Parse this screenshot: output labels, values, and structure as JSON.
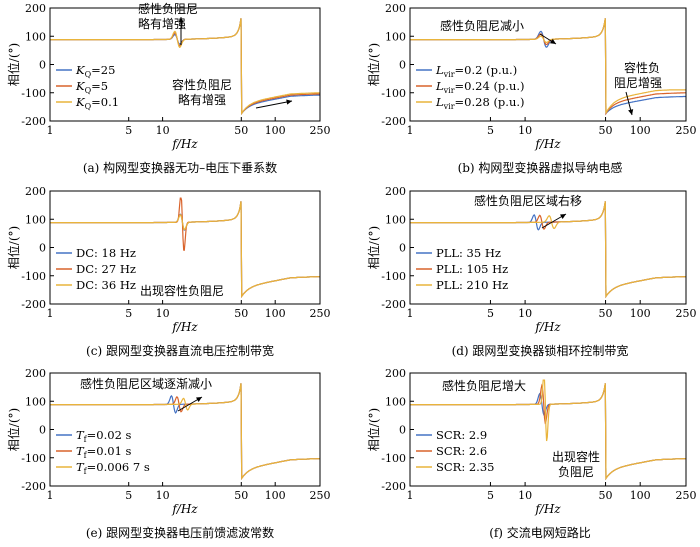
{
  "colors": {
    "blue": "#4472C4",
    "orange": "#D9632B",
    "yellow": "#E9B43B"
  },
  "chart_data": [
    {
      "type": "line",
      "caption": "(a) 构网型变换器无功–电压下垂系数",
      "ylabel": "相位/(°)",
      "xlabel": "f/Hz",
      "xscale": "log",
      "xlim": [
        1,
        250
      ],
      "ylim": [
        -200,
        200
      ],
      "xticks": [
        "1",
        "5",
        "10",
        "50",
        "100",
        "250"
      ],
      "yticks": [
        "200",
        "100",
        "0",
        "-100",
        "-200"
      ],
      "legend_position": "center-left",
      "series": [
        {
          "label_main": "K",
          "label_sub": "Q",
          "label_rest": "=25",
          "color": "blue"
        },
        {
          "label_main": "K",
          "label_sub": "Q",
          "label_rest": "=5",
          "color": "orange"
        },
        {
          "label_main": "K",
          "label_sub": "Q",
          "label_rest": "=0.1",
          "color": "yellow"
        }
      ],
      "annotations": [
        "感性负阻尼",
        "略有增强",
        "容性负阻尼",
        "略有增强"
      ]
    },
    {
      "type": "line",
      "caption": "(b) 构网型变换器虚拟导纳电感",
      "ylabel": "相位/(°)",
      "xlabel": "f/Hz",
      "xscale": "log",
      "xlim": [
        1,
        250
      ],
      "ylim": [
        -200,
        200
      ],
      "xticks": [
        "1",
        "5",
        "10",
        "50",
        "100",
        "250"
      ],
      "yticks": [
        "200",
        "100",
        "0",
        "-100",
        "-200"
      ],
      "legend_position": "center-left",
      "series": [
        {
          "label_main": "L",
          "label_sub": "vir",
          "label_rest": "=0.2 (p.u.)",
          "color": "blue"
        },
        {
          "label_main": "L",
          "label_sub": "vir",
          "label_rest": "=0.24 (p.u.)",
          "color": "orange"
        },
        {
          "label_main": "L",
          "label_sub": "vir",
          "label_rest": "=0.28 (p.u.)",
          "color": "yellow"
        }
      ],
      "annotations": [
        "感性负阻尼减小",
        "容性负",
        "阻尼增强"
      ]
    },
    {
      "type": "line",
      "caption": "(c) 跟网型变换器直流电压控制带宽",
      "ylabel": "相位/(°)",
      "xlabel": "f/Hz",
      "xscale": "log",
      "xlim": [
        1,
        250
      ],
      "ylim": [
        -200,
        200
      ],
      "xticks": [
        "1",
        "5",
        "10",
        "50",
        "100",
        "250"
      ],
      "yticks": [
        "200",
        "100",
        "0",
        "-100",
        "-200"
      ],
      "legend_position": "center-left",
      "series": [
        {
          "label_main": "DC: 18 Hz",
          "label_sub": "",
          "label_rest": "",
          "color": "blue"
        },
        {
          "label_main": "DC: 27 Hz",
          "label_sub": "",
          "label_rest": "",
          "color": "orange"
        },
        {
          "label_main": "DC: 36 Hz",
          "label_sub": "",
          "label_rest": "",
          "color": "yellow"
        }
      ],
      "annotations": [
        "出现容性负阻尼"
      ]
    },
    {
      "type": "line",
      "caption": "(d) 跟网型变换器锁相环控制带宽",
      "ylabel": "相位/(°)",
      "xlabel": "f/Hz",
      "xscale": "log",
      "xlim": [
        1,
        250
      ],
      "ylim": [
        -200,
        200
      ],
      "xticks": [
        "1",
        "5",
        "10",
        "50",
        "100",
        "250"
      ],
      "yticks": [
        "200",
        "100",
        "0",
        "-100",
        "-200"
      ],
      "legend_position": "center-left",
      "series": [
        {
          "label_main": "PLL: 35 Hz",
          "label_sub": "",
          "label_rest": "",
          "color": "blue"
        },
        {
          "label_main": "PLL: 105 Hz",
          "label_sub": "",
          "label_rest": "",
          "color": "orange"
        },
        {
          "label_main": "PLL: 210 Hz",
          "label_sub": "",
          "label_rest": "",
          "color": "yellow"
        }
      ],
      "annotations": [
        "感性负阻尼区域右移"
      ]
    },
    {
      "type": "line",
      "caption": "(e) 跟网型变换器电压前馈滤波常数",
      "ylabel": "相位/(°)",
      "xlabel": "f/Hz",
      "xscale": "log",
      "xlim": [
        1,
        250
      ],
      "ylim": [
        -200,
        200
      ],
      "xticks": [
        "1",
        "5",
        "10",
        "50",
        "100",
        "250"
      ],
      "yticks": [
        "200",
        "100",
        "0",
        "-100",
        "-200"
      ],
      "legend_position": "center-left",
      "series": [
        {
          "label_main": "T",
          "label_sub": "f",
          "label_rest": "=0.02 s",
          "color": "blue"
        },
        {
          "label_main": "T",
          "label_sub": "f",
          "label_rest": "=0.01 s",
          "color": "orange"
        },
        {
          "label_main": "T",
          "label_sub": "f",
          "label_rest": "=0.006 7 s",
          "color": "yellow"
        }
      ],
      "annotations": [
        "感性负阻尼区域逐渐减小"
      ]
    },
    {
      "type": "line",
      "caption": "(f) 交流电网短路比",
      "ylabel": "相位/(°)",
      "xlabel": "f/Hz",
      "xscale": "log",
      "xlim": [
        1,
        250
      ],
      "ylim": [
        -200,
        200
      ],
      "xticks": [
        "1",
        "5",
        "10",
        "50",
        "100",
        "250"
      ],
      "yticks": [
        "200",
        "100",
        "0",
        "-100",
        "-200"
      ],
      "legend_position": "center-left",
      "series": [
        {
          "label_main": "SCR: 2.9",
          "label_sub": "",
          "label_rest": "",
          "color": "blue"
        },
        {
          "label_main": "SCR: 2.6",
          "label_sub": "",
          "label_rest": "",
          "color": "orange"
        },
        {
          "label_main": "SCR: 2.35",
          "label_sub": "",
          "label_rest": "",
          "color": "yellow"
        }
      ],
      "annotations": [
        "感性负阻尼增大",
        "出现容性",
        "负阻尼"
      ]
    }
  ]
}
